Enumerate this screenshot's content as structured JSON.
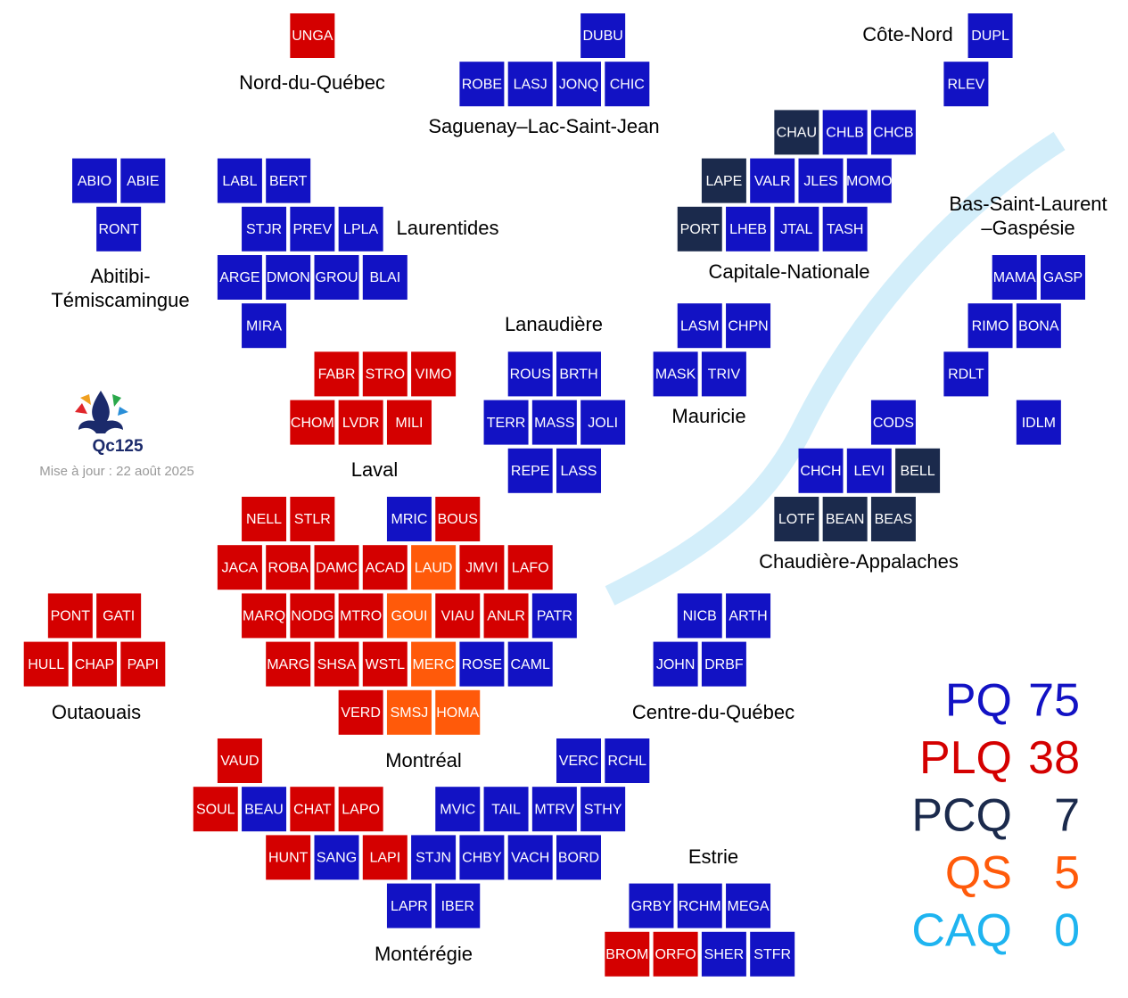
{
  "parties": [
    {
      "name": "PQ",
      "seats": 75,
      "color": "#1212c4"
    },
    {
      "name": "PLQ",
      "seats": 38,
      "color": "#d40000"
    },
    {
      "name": "PCQ",
      "seats": 7,
      "color": "#1b2a4c"
    },
    {
      "name": "QS",
      "seats": 5,
      "color": "#ff5a0a"
    },
    {
      "name": "CAQ",
      "seats": 0,
      "color": "#1eb4f0"
    }
  ],
  "logo": {
    "text": "Qc125",
    "updated": "Mise à jour : 22 août 2025"
  },
  "regions": [
    {
      "lines": [
        "Nord-du-Québec"
      ]
    },
    {
      "lines": [
        "Saguenay–Lac-Saint-Jean"
      ]
    },
    {
      "lines": [
        "Côte-Nord"
      ]
    },
    {
      "lines": [
        "Abitibi-",
        "Témiscamingue"
      ]
    },
    {
      "lines": [
        "Laurentides"
      ]
    },
    {
      "lines": [
        "Capitale-Nationale"
      ]
    },
    {
      "lines": [
        "Bas-Saint-Laurent",
        "–Gaspésie"
      ]
    },
    {
      "lines": [
        "Lanaudière"
      ]
    },
    {
      "lines": [
        "Mauricie"
      ]
    },
    {
      "lines": [
        "Laval"
      ]
    },
    {
      "lines": [
        "Chaudière-Appalaches"
      ]
    },
    {
      "lines": [
        "Outaouais"
      ]
    },
    {
      "lines": [
        "Centre-du-Québec"
      ]
    },
    {
      "lines": [
        "Montréal"
      ]
    },
    {
      "lines": [
        "Estrie"
      ]
    },
    {
      "lines": [
        "Montérégie"
      ]
    }
  ],
  "ridings": [
    {
      "code": "UNGA",
      "party": "PLQ"
    },
    {
      "code": "DUBU",
      "party": "PQ"
    },
    {
      "code": "DUPL",
      "party": "PQ"
    },
    {
      "code": "ROBE",
      "party": "PQ"
    },
    {
      "code": "LASJ",
      "party": "PQ"
    },
    {
      "code": "JONQ",
      "party": "PQ"
    },
    {
      "code": "CHIC",
      "party": "PQ"
    },
    {
      "code": "RLEV",
      "party": "PQ"
    },
    {
      "code": "CHAU",
      "party": "PCQ"
    },
    {
      "code": "CHLB",
      "party": "PQ"
    },
    {
      "code": "CHCB",
      "party": "PQ"
    },
    {
      "code": "ABIO",
      "party": "PQ"
    },
    {
      "code": "ABIE",
      "party": "PQ"
    },
    {
      "code": "LABL",
      "party": "PQ"
    },
    {
      "code": "BERT",
      "party": "PQ"
    },
    {
      "code": "LAPE",
      "party": "PCQ"
    },
    {
      "code": "VALR",
      "party": "PQ"
    },
    {
      "code": "JLES",
      "party": "PQ"
    },
    {
      "code": "MOMO",
      "party": "PQ"
    },
    {
      "code": "RONT",
      "party": "PQ"
    },
    {
      "code": "STJR",
      "party": "PQ"
    },
    {
      "code": "PREV",
      "party": "PQ"
    },
    {
      "code": "LPLA",
      "party": "PQ"
    },
    {
      "code": "PORT",
      "party": "PCQ"
    },
    {
      "code": "LHEB",
      "party": "PQ"
    },
    {
      "code": "JTAL",
      "party": "PQ"
    },
    {
      "code": "TASH",
      "party": "PQ"
    },
    {
      "code": "ARGE",
      "party": "PQ"
    },
    {
      "code": "DMON",
      "party": "PQ"
    },
    {
      "code": "GROU",
      "party": "PQ"
    },
    {
      "code": "BLAI",
      "party": "PQ"
    },
    {
      "code": "MAMA",
      "party": "PQ"
    },
    {
      "code": "GASP",
      "party": "PQ"
    },
    {
      "code": "MIRA",
      "party": "PQ"
    },
    {
      "code": "LASM",
      "party": "PQ"
    },
    {
      "code": "CHPN",
      "party": "PQ"
    },
    {
      "code": "RIMO",
      "party": "PQ"
    },
    {
      "code": "BONA",
      "party": "PQ"
    },
    {
      "code": "FABR",
      "party": "PLQ"
    },
    {
      "code": "STRO",
      "party": "PLQ"
    },
    {
      "code": "VIMO",
      "party": "PLQ"
    },
    {
      "code": "ROUS",
      "party": "PQ"
    },
    {
      "code": "BRTH",
      "party": "PQ"
    },
    {
      "code": "MASK",
      "party": "PQ"
    },
    {
      "code": "TRIV",
      "party": "PQ"
    },
    {
      "code": "RDLT",
      "party": "PQ"
    },
    {
      "code": "CHOM",
      "party": "PLQ"
    },
    {
      "code": "LVDR",
      "party": "PLQ"
    },
    {
      "code": "MILI",
      "party": "PLQ"
    },
    {
      "code": "TERR",
      "party": "PQ"
    },
    {
      "code": "MASS",
      "party": "PQ"
    },
    {
      "code": "JOLI",
      "party": "PQ"
    },
    {
      "code": "CODS",
      "party": "PQ"
    },
    {
      "code": "IDLM",
      "party": "PQ"
    },
    {
      "code": "REPE",
      "party": "PQ"
    },
    {
      "code": "LASS",
      "party": "PQ"
    },
    {
      "code": "CHCH",
      "party": "PQ"
    },
    {
      "code": "LEVI",
      "party": "PQ"
    },
    {
      "code": "BELL",
      "party": "PCQ"
    },
    {
      "code": "NELL",
      "party": "PLQ"
    },
    {
      "code": "STLR",
      "party": "PLQ"
    },
    {
      "code": "MRIC",
      "party": "PQ"
    },
    {
      "code": "BOUS",
      "party": "PLQ"
    },
    {
      "code": "LOTF",
      "party": "PCQ"
    },
    {
      "code": "BEAN",
      "party": "PCQ"
    },
    {
      "code": "BEAS",
      "party": "PCQ"
    },
    {
      "code": "JACA",
      "party": "PLQ"
    },
    {
      "code": "ROBA",
      "party": "PLQ"
    },
    {
      "code": "DAMC",
      "party": "PLQ"
    },
    {
      "code": "ACAD",
      "party": "PLQ"
    },
    {
      "code": "LAUD",
      "party": "QS"
    },
    {
      "code": "JMVI",
      "party": "PLQ"
    },
    {
      "code": "LAFO",
      "party": "PLQ"
    },
    {
      "code": "PONT",
      "party": "PLQ"
    },
    {
      "code": "GATI",
      "party": "PLQ"
    },
    {
      "code": "MARQ",
      "party": "PLQ"
    },
    {
      "code": "NODG",
      "party": "PLQ"
    },
    {
      "code": "MTRO",
      "party": "PLQ"
    },
    {
      "code": "GOUI",
      "party": "QS"
    },
    {
      "code": "VIAU",
      "party": "PLQ"
    },
    {
      "code": "ANLR",
      "party": "PLQ"
    },
    {
      "code": "PATR",
      "party": "PQ"
    },
    {
      "code": "NICB",
      "party": "PQ"
    },
    {
      "code": "ARTH",
      "party": "PQ"
    },
    {
      "code": "HULL",
      "party": "PLQ"
    },
    {
      "code": "CHAP",
      "party": "PLQ"
    },
    {
      "code": "PAPI",
      "party": "PLQ"
    },
    {
      "code": "MARG",
      "party": "PLQ"
    },
    {
      "code": "SHSA",
      "party": "PLQ"
    },
    {
      "code": "WSTL",
      "party": "PLQ"
    },
    {
      "code": "MERC",
      "party": "QS"
    },
    {
      "code": "ROSE",
      "party": "PQ"
    },
    {
      "code": "CAML",
      "party": "PQ"
    },
    {
      "code": "JOHN",
      "party": "PQ"
    },
    {
      "code": "DRBF",
      "party": "PQ"
    },
    {
      "code": "VERD",
      "party": "PLQ"
    },
    {
      "code": "SMSJ",
      "party": "QS"
    },
    {
      "code": "HOMA",
      "party": "QS"
    },
    {
      "code": "VAUD",
      "party": "PLQ"
    },
    {
      "code": "VERC",
      "party": "PQ"
    },
    {
      "code": "RCHL",
      "party": "PQ"
    },
    {
      "code": "SOUL",
      "party": "PLQ"
    },
    {
      "code": "BEAU",
      "party": "PQ"
    },
    {
      "code": "CHAT",
      "party": "PLQ"
    },
    {
      "code": "LAPO",
      "party": "PLQ"
    },
    {
      "code": "MVIC",
      "party": "PQ"
    },
    {
      "code": "TAIL",
      "party": "PQ"
    },
    {
      "code": "MTRV",
      "party": "PQ"
    },
    {
      "code": "STHY",
      "party": "PQ"
    },
    {
      "code": "HUNT",
      "party": "PLQ"
    },
    {
      "code": "SANG",
      "party": "PQ"
    },
    {
      "code": "LAPI",
      "party": "PLQ"
    },
    {
      "code": "STJN",
      "party": "PQ"
    },
    {
      "code": "CHBY",
      "party": "PQ"
    },
    {
      "code": "VACH",
      "party": "PQ"
    },
    {
      "code": "BORD",
      "party": "PQ"
    },
    {
      "code": "LAPR",
      "party": "PQ"
    },
    {
      "code": "IBER",
      "party": "PQ"
    },
    {
      "code": "GRBY",
      "party": "PQ"
    },
    {
      "code": "RCHM",
      "party": "PQ"
    },
    {
      "code": "MEGA",
      "party": "PQ"
    },
    {
      "code": "BROM",
      "party": "PLQ"
    },
    {
      "code": "ORFO",
      "party": "PLQ"
    },
    {
      "code": "SHER",
      "party": "PQ"
    },
    {
      "code": "STFR",
      "party": "PQ"
    }
  ]
}
